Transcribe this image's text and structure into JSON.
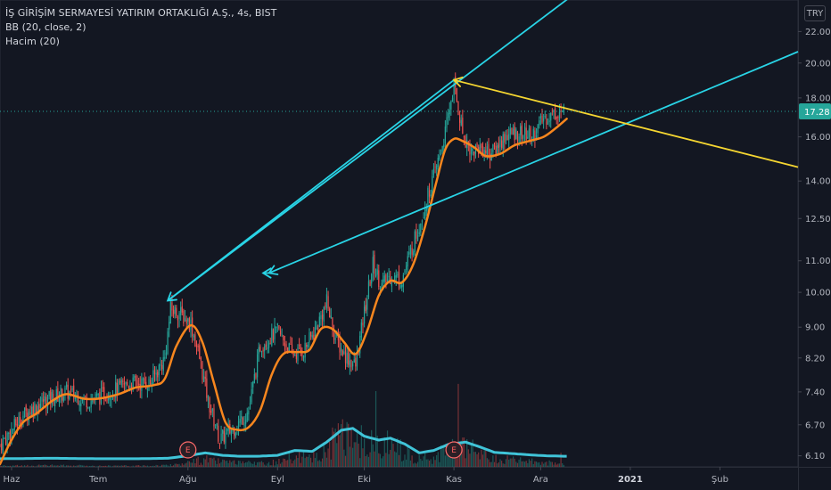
{
  "header": {
    "title": "İŞ GİRİŞİM SERMAYESİ YATIRIM ORTAKLIĞI A.Ş., 4s, BIST",
    "indicator_1": "BB (20, close, 2)",
    "indicator_2": "Hacim (20)",
    "currency": "TRY"
  },
  "colors": {
    "background": "#131722",
    "bull": "#26a69a",
    "bear": "#ef5350",
    "bb_basis": "#f7861e",
    "volume_ma": "#40c4d8",
    "trendline_cyan": "#29d4e6",
    "trendline_yellow": "#f5d631",
    "last_price": "#26a69a"
  },
  "chart_data": {
    "type": "candlestick",
    "title": "İŞ GİRİŞİM SERMAYESİ YATIRIM ORTAKLIĞI A.Ş., 4s, BIST",
    "y_scale": "log",
    "ylim": [
      5.9,
      24.2
    ],
    "y_ticks": [
      6.1,
      6.7,
      7.4,
      8.2,
      9.0,
      10.0,
      11.0,
      12.5,
      14.0,
      16.0,
      18.0,
      20.0,
      22.0
    ],
    "y_tick_labels": [
      "6.10",
      "6.70",
      "7.40",
      "8.20",
      "9.00",
      "10.00",
      "11.00",
      "12.50",
      "14.00",
      "16.00",
      "18.00",
      "20.00",
      "22.00"
    ],
    "x_ticks": [
      {
        "label": "Haz",
        "date": "2020-06-01"
      },
      {
        "label": "Tem",
        "date": "2020-07-01"
      },
      {
        "label": "Ağu",
        "date": "2020-08-01"
      },
      {
        "label": "Eyl",
        "date": "2020-09-01"
      },
      {
        "label": "Eki",
        "date": "2020-10-01"
      },
      {
        "label": "Kas",
        "date": "2020-11-01"
      },
      {
        "label": "Ara",
        "date": "2020-12-01"
      },
      {
        "label": "2021",
        "date": "2021-01-01",
        "bold": true
      },
      {
        "label": "Şub",
        "date": "2021-02-01"
      }
    ],
    "xlim": [
      "2020-05-28",
      "2021-02-28"
    ],
    "last_price": 17.28,
    "last_price_label": "17.28",
    "price_path": [
      [
        "2020-05-28",
        6.3
      ],
      [
        "2020-06-05",
        6.9
      ],
      [
        "2020-06-12",
        7.2
      ],
      [
        "2020-06-20",
        7.4
      ],
      [
        "2020-06-28",
        7.2
      ],
      [
        "2020-07-05",
        7.4
      ],
      [
        "2020-07-12",
        7.6
      ],
      [
        "2020-07-19",
        7.6
      ],
      [
        "2020-07-24",
        8.2
      ],
      [
        "2020-07-26",
        9.5
      ],
      [
        "2020-07-29",
        9.4
      ],
      [
        "2020-08-02",
        9.1
      ],
      [
        "2020-08-05",
        8.2
      ],
      [
        "2020-08-08",
        7.2
      ],
      [
        "2020-08-12",
        6.4
      ],
      [
        "2020-08-18",
        6.7
      ],
      [
        "2020-08-22",
        7.0
      ],
      [
        "2020-08-26",
        8.5
      ],
      [
        "2020-09-01",
        8.9
      ],
      [
        "2020-09-06",
        8.3
      ],
      [
        "2020-09-10",
        8.4
      ],
      [
        "2020-09-14",
        8.9
      ],
      [
        "2020-09-18",
        9.7
      ],
      [
        "2020-09-21",
        8.7
      ],
      [
        "2020-09-24",
        8.3
      ],
      [
        "2020-09-28",
        8.0
      ],
      [
        "2020-10-01",
        9.4
      ],
      [
        "2020-10-04",
        10.9
      ],
      [
        "2020-10-07",
        10.2
      ],
      [
        "2020-10-10",
        10.5
      ],
      [
        "2020-10-14",
        10.4
      ],
      [
        "2020-10-18",
        11.6
      ],
      [
        "2020-10-22",
        13.0
      ],
      [
        "2020-10-26",
        14.6
      ],
      [
        "2020-10-29",
        16.2
      ],
      [
        "2020-11-01",
        18.8
      ],
      [
        "2020-11-02",
        17.8
      ],
      [
        "2020-11-04",
        16.2
      ],
      [
        "2020-11-07",
        15.3
      ],
      [
        "2020-11-10",
        15.5
      ],
      [
        "2020-11-14",
        15.2
      ],
      [
        "2020-11-19",
        16.1
      ],
      [
        "2020-11-24",
        16.2
      ],
      [
        "2020-11-28",
        16.0
      ],
      [
        "2020-12-02",
        16.9
      ],
      [
        "2020-12-06",
        17.2
      ],
      [
        "2020-12-09",
        17.28
      ]
    ],
    "bb_basis": [
      [
        "2020-05-28",
        5.95
      ],
      [
        "2020-06-01",
        6.4
      ],
      [
        "2020-06-05",
        6.75
      ],
      [
        "2020-06-10",
        6.95
      ],
      [
        "2020-06-15",
        7.2
      ],
      [
        "2020-06-20",
        7.35
      ],
      [
        "2020-06-26",
        7.25
      ],
      [
        "2020-07-01",
        7.25
      ],
      [
        "2020-07-08",
        7.35
      ],
      [
        "2020-07-14",
        7.5
      ],
      [
        "2020-07-20",
        7.55
      ],
      [
        "2020-07-24",
        7.7
      ],
      [
        "2020-07-28",
        8.5
      ],
      [
        "2020-08-02",
        9.05
      ],
      [
        "2020-08-06",
        8.6
      ],
      [
        "2020-08-10",
        7.6
      ],
      [
        "2020-08-14",
        6.75
      ],
      [
        "2020-08-18",
        6.6
      ],
      [
        "2020-08-22",
        6.65
      ],
      [
        "2020-08-26",
        7.0
      ],
      [
        "2020-08-30",
        7.8
      ],
      [
        "2020-09-03",
        8.3
      ],
      [
        "2020-09-08",
        8.35
      ],
      [
        "2020-09-12",
        8.4
      ],
      [
        "2020-09-16",
        8.95
      ],
      [
        "2020-09-20",
        8.95
      ],
      [
        "2020-09-24",
        8.6
      ],
      [
        "2020-09-28",
        8.3
      ],
      [
        "2020-10-02",
        8.9
      ],
      [
        "2020-10-06",
        9.9
      ],
      [
        "2020-10-10",
        10.35
      ],
      [
        "2020-10-14",
        10.3
      ],
      [
        "2020-10-18",
        10.9
      ],
      [
        "2020-10-22",
        12.2
      ],
      [
        "2020-10-26",
        14.0
      ],
      [
        "2020-10-29",
        15.4
      ],
      [
        "2020-11-01",
        15.9
      ],
      [
        "2020-11-04",
        15.8
      ],
      [
        "2020-11-08",
        15.5
      ],
      [
        "2020-11-12",
        15.1
      ],
      [
        "2020-11-17",
        15.2
      ],
      [
        "2020-11-22",
        15.6
      ],
      [
        "2020-11-27",
        15.8
      ],
      [
        "2020-12-02",
        16.0
      ],
      [
        "2020-12-06",
        16.4
      ],
      [
        "2020-12-10",
        16.9
      ]
    ],
    "volume_ma": [
      [
        "2020-05-28",
        0.02
      ],
      [
        "2020-06-15",
        0.03
      ],
      [
        "2020-07-01",
        0.02
      ],
      [
        "2020-07-15",
        0.02
      ],
      [
        "2020-07-25",
        0.03
      ],
      [
        "2020-08-01",
        0.08
      ],
      [
        "2020-08-07",
        0.14
      ],
      [
        "2020-08-13",
        0.09
      ],
      [
        "2020-08-19",
        0.07
      ],
      [
        "2020-08-25",
        0.07
      ],
      [
        "2020-09-01",
        0.09
      ],
      [
        "2020-09-07",
        0.19
      ],
      [
        "2020-09-13",
        0.17
      ],
      [
        "2020-09-18",
        0.36
      ],
      [
        "2020-09-23",
        0.6
      ],
      [
        "2020-09-27",
        0.64
      ],
      [
        "2020-10-01",
        0.48
      ],
      [
        "2020-10-06",
        0.4
      ],
      [
        "2020-10-10",
        0.44
      ],
      [
        "2020-10-15",
        0.32
      ],
      [
        "2020-10-20",
        0.14
      ],
      [
        "2020-10-25",
        0.19
      ],
      [
        "2020-10-30",
        0.31
      ],
      [
        "2020-11-05",
        0.36
      ],
      [
        "2020-11-10",
        0.26
      ],
      [
        "2020-11-15",
        0.15
      ],
      [
        "2020-11-20",
        0.13
      ],
      [
        "2020-11-27",
        0.1
      ],
      [
        "2020-12-03",
        0.08
      ],
      [
        "2020-12-10",
        0.07
      ]
    ],
    "earnings_markers": [
      {
        "date": "2020-08-01",
        "label": "E"
      },
      {
        "date": "2020-11-01",
        "label": "E"
      }
    ],
    "trendlines": [
      {
        "color": "cyan",
        "from": [
          "2020-07-25",
          9.75
        ],
        "to": [
          "2021-01-01",
          28.0
        ]
      },
      {
        "color": "cyan",
        "from": [
          "2020-11-01",
          19.0
        ],
        "to": [
          "2020-07-25",
          9.75
        ],
        "arrow_end": true
      },
      {
        "color": "cyan",
        "from": [
          "2020-08-29",
          10.6
        ],
        "to": [
          "2021-02-28",
          20.7
        ]
      },
      {
        "color": "cyan",
        "from": [
          "2020-08-29",
          10.6
        ],
        "to": [
          "2020-08-27",
          10.6
        ],
        "arrow_end": true
      },
      {
        "color": "yellow",
        "from": [
          "2020-11-01",
          19.0
        ],
        "to": [
          "2021-02-28",
          14.6
        ]
      },
      {
        "color": "yellow",
        "from": [
          "2020-11-01",
          19.0
        ],
        "to": [
          "2020-11-01",
          19.0
        ],
        "arrow_start": true
      }
    ]
  }
}
